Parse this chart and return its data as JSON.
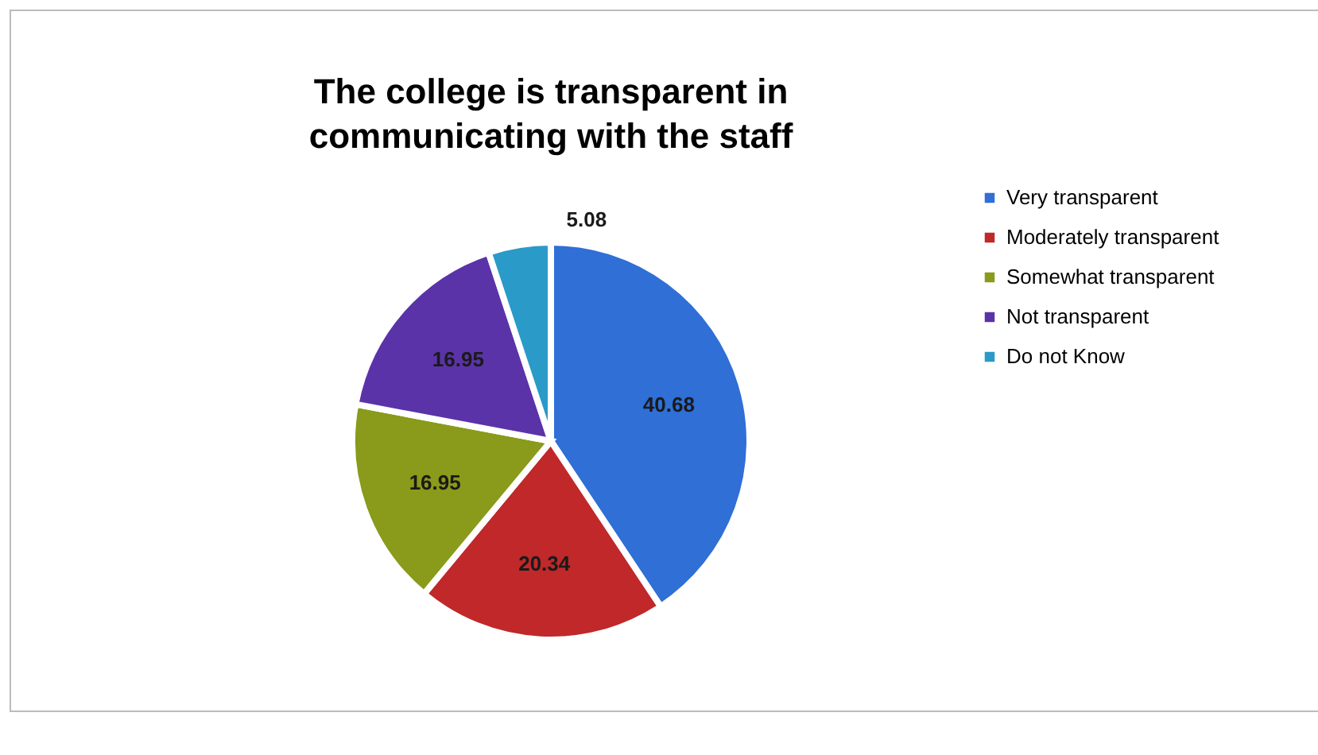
{
  "chart_data": {
    "type": "pie",
    "title": "The college is transparent in communicating with the staff",
    "categories": [
      "Very transparent",
      "Moderately transparent",
      "Somewhat transparent",
      "Not transparent",
      "Do not Know"
    ],
    "values": [
      40.68,
      20.34,
      16.95,
      16.95,
      5.08
    ],
    "colors": [
      "#2f6fd6",
      "#c0282a",
      "#8a9a1a",
      "#5b33a8",
      "#2a9ac8"
    ],
    "data_labels": true,
    "legend": "right"
  }
}
